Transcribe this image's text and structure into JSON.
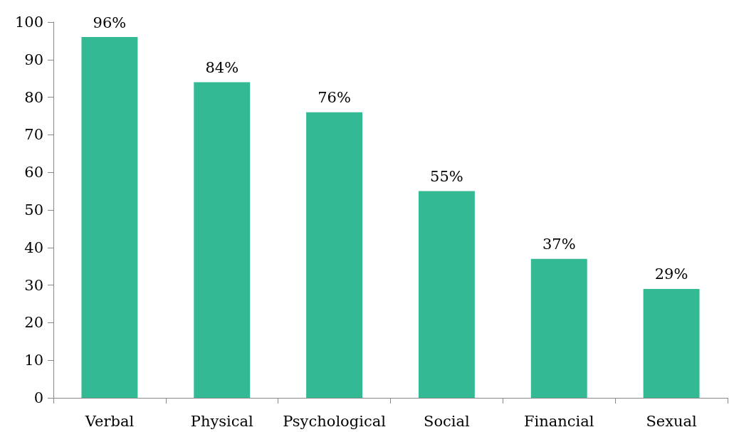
{
  "chart_data": {
    "type": "bar",
    "categories": [
      "Verbal",
      "Physical",
      "Psychological",
      "Social",
      "Financial",
      "Sexual"
    ],
    "values": [
      96,
      84,
      76,
      55,
      37,
      29
    ],
    "value_labels": [
      "96%",
      "84%",
      "76%",
      "55%",
      "37%",
      "29%"
    ],
    "color": "#33b994",
    "ylim": [
      0,
      100
    ],
    "yticks": [
      0,
      10,
      20,
      30,
      40,
      50,
      60,
      70,
      80,
      90,
      100
    ],
    "grid": false
  }
}
